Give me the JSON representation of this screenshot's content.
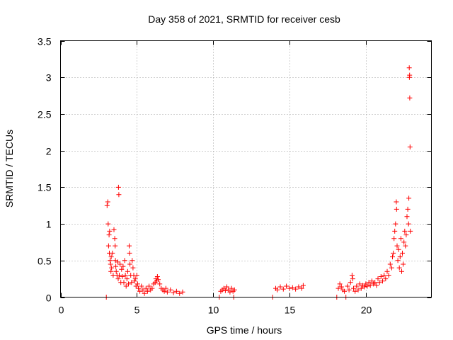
{
  "chart_data": {
    "type": "scatter",
    "title": "Day 358 of 2021, SRMTID for receiver cesb",
    "xlabel": "GPS time / hours",
    "ylabel": "SRMTID / TECUs",
    "xlim": [
      0,
      24.3
    ],
    "ylim": [
      0,
      3.5
    ],
    "xticks": [
      0,
      5,
      10,
      15,
      20
    ],
    "xtick_labels": [
      "0",
      "5",
      "10",
      "15",
      "20"
    ],
    "yticks": [
      0,
      0.5,
      1,
      1.5,
      2,
      2.5,
      3,
      3.5
    ],
    "ytick_labels": [
      "0",
      "0.5",
      "1",
      "1.5",
      "2",
      "2.5",
      "3",
      "3.5"
    ],
    "grid": true,
    "marker": "+",
    "color": "#ff0000",
    "series": [
      {
        "name": "SRMTID",
        "points": [
          [
            3.0,
            0.0
          ],
          [
            3.05,
            1.25
          ],
          [
            3.1,
            1.3
          ],
          [
            3.12,
            1.0
          ],
          [
            3.15,
            0.7
          ],
          [
            3.18,
            0.85
          ],
          [
            3.2,
            0.6
          ],
          [
            3.22,
            0.9
          ],
          [
            3.25,
            0.5
          ],
          [
            3.28,
            0.45
          ],
          [
            3.3,
            0.35
          ],
          [
            3.32,
            0.55
          ],
          [
            3.35,
            0.4
          ],
          [
            3.4,
            0.6
          ],
          [
            3.45,
            0.3
          ],
          [
            3.5,
            0.92
          ],
          [
            3.55,
            0.8
          ],
          [
            3.58,
            0.7
          ],
          [
            3.6,
            0.5
          ],
          [
            3.62,
            0.42
          ],
          [
            3.65,
            0.35
          ],
          [
            3.7,
            0.3
          ],
          [
            3.75,
            0.48
          ],
          [
            3.78,
            0.25
          ],
          [
            3.8,
            1.5
          ],
          [
            3.82,
            1.4
          ],
          [
            3.85,
            0.3
          ],
          [
            3.9,
            0.45
          ],
          [
            3.95,
            0.2
          ],
          [
            4.0,
            0.38
          ],
          [
            4.05,
            0.28
          ],
          [
            4.1,
            0.42
          ],
          [
            4.15,
            0.2
          ],
          [
            4.2,
            0.5
          ],
          [
            4.25,
            0.3
          ],
          [
            4.3,
            0.15
          ],
          [
            4.35,
            0.25
          ],
          [
            4.4,
            0.35
          ],
          [
            4.45,
            0.18
          ],
          [
            4.5,
            0.7
          ],
          [
            4.52,
            0.6
          ],
          [
            4.55,
            0.45
          ],
          [
            4.6,
            0.3
          ],
          [
            4.65,
            0.2
          ],
          [
            4.7,
            0.5
          ],
          [
            4.75,
            0.4
          ],
          [
            4.8,
            0.3
          ],
          [
            4.85,
            0.22
          ],
          [
            4.9,
            0.25
          ],
          [
            4.95,
            0.15
          ],
          [
            5.0,
            0.3
          ],
          [
            5.05,
            0.18
          ],
          [
            5.1,
            0.12
          ],
          [
            5.2,
            0.08
          ],
          [
            5.3,
            0.15
          ],
          [
            5.4,
            0.1
          ],
          [
            5.5,
            0.05
          ],
          [
            5.6,
            0.12
          ],
          [
            5.7,
            0.08
          ],
          [
            5.8,
            0.15
          ],
          [
            5.9,
            0.1
          ],
          [
            6.0,
            0.12
          ],
          [
            6.1,
            0.18
          ],
          [
            6.2,
            0.2
          ],
          [
            6.25,
            0.25
          ],
          [
            6.3,
            0.22
          ],
          [
            6.35,
            0.28
          ],
          [
            6.4,
            0.24
          ],
          [
            6.5,
            0.18
          ],
          [
            6.6,
            0.12
          ],
          [
            6.7,
            0.1
          ],
          [
            6.8,
            0.08
          ],
          [
            6.9,
            0.12
          ],
          [
            7.0,
            0.07
          ],
          [
            7.2,
            0.1
          ],
          [
            7.4,
            0.06
          ],
          [
            7.6,
            0.08
          ],
          [
            7.8,
            0.05
          ],
          [
            8.0,
            0.07
          ],
          [
            10.4,
            0.0
          ],
          [
            10.5,
            0.08
          ],
          [
            10.6,
            0.1
          ],
          [
            10.7,
            0.12
          ],
          [
            10.8,
            0.09
          ],
          [
            10.9,
            0.14
          ],
          [
            11.0,
            0.1
          ],
          [
            11.1,
            0.07
          ],
          [
            11.2,
            0.12
          ],
          [
            11.3,
            0.08
          ],
          [
            11.35,
            0.0
          ],
          [
            11.4,
            0.1
          ],
          [
            13.9,
            0.0
          ],
          [
            14.1,
            0.12
          ],
          [
            14.2,
            0.1
          ],
          [
            14.4,
            0.14
          ],
          [
            14.6,
            0.11
          ],
          [
            14.8,
            0.15
          ],
          [
            15.0,
            0.12
          ],
          [
            15.2,
            0.13
          ],
          [
            15.4,
            0.11
          ],
          [
            15.6,
            0.14
          ],
          [
            15.8,
            0.12
          ],
          [
            15.9,
            0.16
          ],
          [
            18.1,
            0.0
          ],
          [
            18.2,
            0.12
          ],
          [
            18.3,
            0.18
          ],
          [
            18.4,
            0.14
          ],
          [
            18.5,
            0.1
          ],
          [
            18.6,
            0.08
          ],
          [
            18.7,
            0.0
          ],
          [
            18.8,
            0.15
          ],
          [
            18.9,
            0.1
          ],
          [
            19.0,
            0.2
          ],
          [
            19.1,
            0.3
          ],
          [
            19.15,
            0.25
          ],
          [
            19.2,
            0.12
          ],
          [
            19.3,
            0.08
          ],
          [
            19.4,
            0.15
          ],
          [
            19.5,
            0.1
          ],
          [
            19.6,
            0.18
          ],
          [
            19.7,
            0.12
          ],
          [
            19.8,
            0.16
          ],
          [
            19.9,
            0.14
          ],
          [
            20.0,
            0.18
          ],
          [
            20.1,
            0.15
          ],
          [
            20.2,
            0.2
          ],
          [
            20.3,
            0.16
          ],
          [
            20.4,
            0.22
          ],
          [
            20.5,
            0.18
          ],
          [
            20.6,
            0.2
          ],
          [
            20.7,
            0.16
          ],
          [
            20.8,
            0.25
          ],
          [
            20.9,
            0.2
          ],
          [
            21.0,
            0.28
          ],
          [
            21.1,
            0.22
          ],
          [
            21.2,
            0.3
          ],
          [
            21.3,
            0.25
          ],
          [
            21.4,
            0.35
          ],
          [
            21.5,
            0.3
          ],
          [
            21.6,
            0.45
          ],
          [
            21.7,
            0.4
          ],
          [
            21.75,
            0.55
          ],
          [
            21.8,
            0.6
          ],
          [
            21.85,
            0.8
          ],
          [
            21.9,
            0.9
          ],
          [
            21.95,
            1.0
          ],
          [
            22.0,
            1.3
          ],
          [
            22.02,
            1.2
          ],
          [
            22.05,
            0.7
          ],
          [
            22.1,
            0.5
          ],
          [
            22.15,
            0.65
          ],
          [
            22.2,
            0.4
          ],
          [
            22.25,
            0.55
          ],
          [
            22.3,
            0.8
          ],
          [
            22.35,
            0.35
          ],
          [
            22.4,
            0.6
          ],
          [
            22.45,
            0.45
          ],
          [
            22.5,
            0.75
          ],
          [
            22.55,
            0.9
          ],
          [
            22.6,
            0.7
          ],
          [
            22.65,
            0.85
          ],
          [
            22.7,
            1.1
          ],
          [
            22.75,
            1.2
          ],
          [
            22.8,
            1.0
          ],
          [
            22.82,
            1.35
          ],
          [
            22.85,
            3.13
          ],
          [
            22.86,
            3.0
          ],
          [
            22.87,
            3.03
          ],
          [
            22.88,
            2.72
          ],
          [
            22.9,
            2.05
          ],
          [
            22.92,
            0.9
          ]
        ]
      }
    ]
  }
}
